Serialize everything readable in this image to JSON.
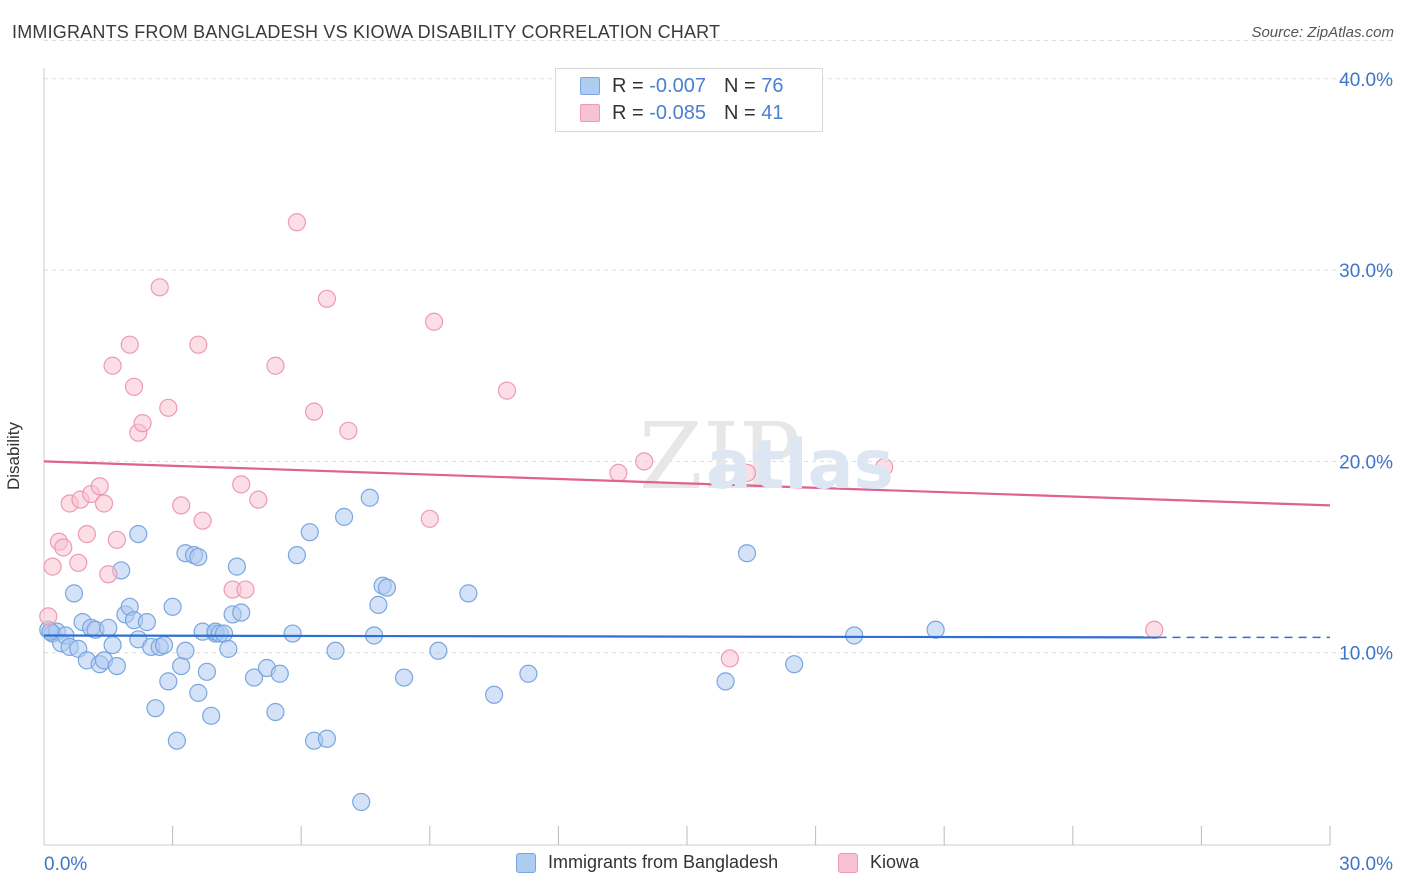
{
  "title": "IMMIGRANTS FROM BANGLADESH VS KIOWA DISABILITY CORRELATION CHART",
  "source": "Source: ZipAtlas.com",
  "watermark": "ZIPatlas",
  "legend": {
    "row1": {
      "r_label": "R =",
      "r_value": "-0.007",
      "n_label": "N =",
      "n_value": "76"
    },
    "row2": {
      "r_label": "R =",
      "r_value": "-0.085",
      "n_label": "N =",
      "n_value": "41"
    }
  },
  "colors": {
    "blue_fill": "#aecbf0",
    "blue_stroke": "#7aa6e0",
    "blue_line": "#2f6fcf",
    "pink_fill": "#f7c3d2",
    "pink_stroke": "#ee9ab4",
    "pink_line": "#e0628e",
    "axis_text": "#3f75c9",
    "grid": "#dddddd"
  },
  "chart_data": {
    "type": "scatter",
    "title": "IMMIGRANTS FROM BANGLADESH VS KIOWA DISABILITY CORRELATION CHART",
    "xlabel": "",
    "ylabel": "Disability",
    "xlim": [
      0,
      30
    ],
    "ylim": [
      0,
      42
    ],
    "x_tick_labels": [
      "0.0%",
      "30.0%"
    ],
    "y_ticks": [
      10,
      20,
      30,
      40
    ],
    "y_tick_labels": [
      "10.0%",
      "20.0%",
      "30.0%",
      "40.0%"
    ],
    "grid": true,
    "legend_position": "bottom",
    "series": [
      {
        "name": "Immigrants from Bangladesh",
        "color": "#aecbf0",
        "trend": {
          "x": [
            0,
            26.0
          ],
          "y": [
            10.9,
            10.8
          ],
          "dashed_to_x": 30.0
        },
        "points": [
          [
            0.1,
            11.2
          ],
          [
            0.2,
            11.0
          ],
          [
            0.3,
            11.1
          ],
          [
            0.4,
            10.5
          ],
          [
            0.5,
            10.9
          ],
          [
            0.6,
            10.3
          ],
          [
            0.7,
            13.1
          ],
          [
            0.8,
            10.2
          ],
          [
            0.9,
            11.6
          ],
          [
            1.0,
            9.6
          ],
          [
            1.1,
            11.3
          ],
          [
            1.2,
            11.2
          ],
          [
            1.3,
            9.4
          ],
          [
            1.4,
            9.6
          ],
          [
            1.5,
            11.3
          ],
          [
            1.6,
            10.4
          ],
          [
            1.7,
            9.3
          ],
          [
            1.8,
            14.3
          ],
          [
            1.9,
            12.0
          ],
          [
            2.0,
            12.4
          ],
          [
            2.1,
            11.7
          ],
          [
            2.2,
            10.7
          ],
          [
            2.2,
            16.2
          ],
          [
            2.4,
            11.6
          ],
          [
            2.5,
            10.3
          ],
          [
            2.6,
            7.1
          ],
          [
            2.7,
            10.3
          ],
          [
            2.8,
            10.4
          ],
          [
            2.9,
            8.5
          ],
          [
            3.0,
            12.4
          ],
          [
            3.1,
            5.4
          ],
          [
            3.2,
            9.3
          ],
          [
            3.3,
            10.1
          ],
          [
            3.3,
            15.2
          ],
          [
            3.5,
            15.1
          ],
          [
            3.6,
            15.0
          ],
          [
            3.6,
            7.9
          ],
          [
            3.7,
            11.1
          ],
          [
            3.8,
            9.0
          ],
          [
            3.9,
            6.7
          ],
          [
            4.0,
            11.0
          ],
          [
            4.0,
            11.1
          ],
          [
            4.1,
            11.0
          ],
          [
            4.2,
            11.0
          ],
          [
            4.3,
            10.2
          ],
          [
            4.4,
            12.0
          ],
          [
            4.5,
            14.5
          ],
          [
            4.6,
            12.1
          ],
          [
            4.9,
            8.7
          ],
          [
            5.2,
            9.2
          ],
          [
            5.4,
            6.9
          ],
          [
            5.5,
            8.9
          ],
          [
            5.8,
            11.0
          ],
          [
            5.9,
            15.1
          ],
          [
            6.2,
            16.3
          ],
          [
            6.3,
            5.4
          ],
          [
            6.6,
            5.5
          ],
          [
            6.8,
            10.1
          ],
          [
            7.0,
            17.1
          ],
          [
            7.4,
            2.2
          ],
          [
            7.6,
            18.1
          ],
          [
            7.7,
            10.9
          ],
          [
            7.8,
            12.5
          ],
          [
            7.9,
            13.5
          ],
          [
            8.0,
            13.4
          ],
          [
            8.4,
            8.7
          ],
          [
            9.2,
            10.1
          ],
          [
            9.9,
            13.1
          ],
          [
            10.5,
            7.8
          ],
          [
            11.3,
            8.9
          ],
          [
            15.9,
            8.5
          ],
          [
            16.4,
            15.2
          ],
          [
            17.5,
            9.4
          ],
          [
            18.9,
            10.9
          ],
          [
            20.8,
            11.2
          ],
          [
            0.15,
            11.1
          ]
        ]
      },
      {
        "name": "Kiowa",
        "color": "#f7c3d2",
        "trend": {
          "x": [
            0,
            30.0
          ],
          "y": [
            20.0,
            17.7
          ]
        },
        "points": [
          [
            0.1,
            11.9
          ],
          [
            0.2,
            14.5
          ],
          [
            0.35,
            15.8
          ],
          [
            0.45,
            15.5
          ],
          [
            0.6,
            17.8
          ],
          [
            0.8,
            14.7
          ],
          [
            0.85,
            18.0
          ],
          [
            1.0,
            16.2
          ],
          [
            1.1,
            18.3
          ],
          [
            1.3,
            18.7
          ],
          [
            1.4,
            17.8
          ],
          [
            1.5,
            14.1
          ],
          [
            1.6,
            25.0
          ],
          [
            1.7,
            15.9
          ],
          [
            2.0,
            26.1
          ],
          [
            2.1,
            23.9
          ],
          [
            2.2,
            21.5
          ],
          [
            2.3,
            22.0
          ],
          [
            2.7,
            29.1
          ],
          [
            2.9,
            22.8
          ],
          [
            3.2,
            17.7
          ],
          [
            3.6,
            26.1
          ],
          [
            3.7,
            16.9
          ],
          [
            4.4,
            13.3
          ],
          [
            4.6,
            18.8
          ],
          [
            4.7,
            13.3
          ],
          [
            5.0,
            18.0
          ],
          [
            5.4,
            25.0
          ],
          [
            5.9,
            32.5
          ],
          [
            6.3,
            22.6
          ],
          [
            6.6,
            28.5
          ],
          [
            7.1,
            21.6
          ],
          [
            9.0,
            17.0
          ],
          [
            9.1,
            27.3
          ],
          [
            10.8,
            23.7
          ],
          [
            13.4,
            19.4
          ],
          [
            14.0,
            20.0
          ],
          [
            16.0,
            9.7
          ],
          [
            16.4,
            19.4
          ],
          [
            19.6,
            19.7
          ],
          [
            25.9,
            11.2
          ]
        ]
      }
    ]
  },
  "bottom_legend": {
    "item1": "Immigrants from Bangladesh",
    "item2": "Kiowa"
  }
}
